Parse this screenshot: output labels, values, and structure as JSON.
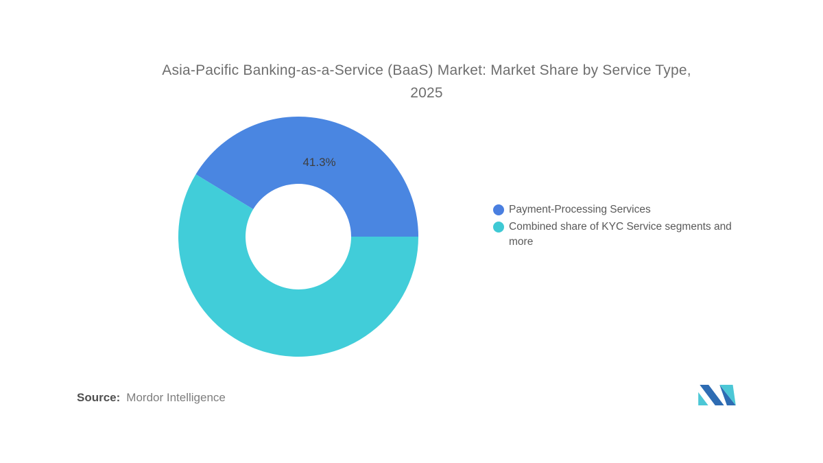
{
  "title": {
    "line1": "Asia-Pacific Banking-as-a-Service (BaaS) Market: Market Share by Service Type,",
    "line2": "2025",
    "full": "Asia-Pacific Banking-as-a-Service (BaaS) Market: Market Share by Service Type, 2025"
  },
  "chart_data": {
    "type": "pie",
    "subtype": "donut",
    "title": "Asia-Pacific Banking-as-a-Service (BaaS) Market: Market Share by Service Type, 2025",
    "start_angle_deg": -58.7,
    "inner_radius_ratio": 0.44,
    "legend_position": "right",
    "slices": [
      {
        "label": "Payment-Processing Services",
        "value": 41.3,
        "data_label": "41.3%",
        "color": "#4a86e1"
      },
      {
        "label": "Combined share of KYC Service segments and more",
        "value": 58.7,
        "data_label": "",
        "color": "#41cdd9"
      }
    ]
  },
  "legend": {
    "items": [
      {
        "label": "Payment-Processing Services",
        "color": "#4a7fe0"
      },
      {
        "label": "Combined share of KYC Service segments and more",
        "color": "#3fc9d4"
      }
    ]
  },
  "data_label_color": "#3e3e3e",
  "footer": {
    "source_label": "Source:",
    "source_value": "Mordor Intelligence"
  },
  "logo": {
    "name": "mordor-intelligence-logo",
    "blue": "#2e6cb3",
    "teal": "#4cc7d6"
  }
}
